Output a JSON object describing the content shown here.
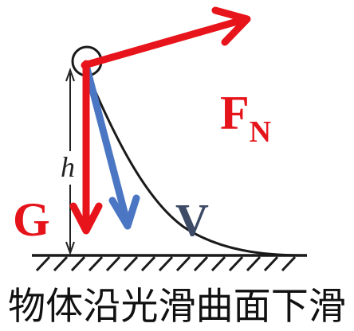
{
  "labels": {
    "normal_force": "F",
    "normal_force_subscript": "N",
    "gravity": "G",
    "velocity": "V",
    "height": "h"
  },
  "caption": "物体沿光滑曲面下滑",
  "colors": {
    "force_arrows": "#e8141b",
    "velocity_arrow": "#4a76c4",
    "velocity_label": "#3d4b66",
    "curve": "#1a1a1a",
    "ground": "#1a1a1a"
  }
}
